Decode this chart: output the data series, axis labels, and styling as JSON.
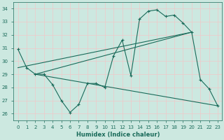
{
  "xlabel": "Humidex (Indice chaleur)",
  "background_color": "#cce8e0",
  "grid_color": "#f0c8c8",
  "line_color": "#1a6b5a",
  "xlim": [
    -0.5,
    23.5
  ],
  "ylim": [
    25.5,
    34.5
  ],
  "yticks": [
    26,
    27,
    28,
    29,
    30,
    31,
    32,
    33,
    34
  ],
  "xticks": [
    0,
    1,
    2,
    3,
    4,
    5,
    6,
    7,
    8,
    9,
    10,
    11,
    12,
    13,
    14,
    15,
    16,
    17,
    18,
    19,
    20,
    21,
    22,
    23
  ],
  "series_main": {
    "x": [
      0,
      1,
      2,
      3,
      4,
      5,
      6,
      7,
      8,
      9,
      10,
      11,
      12,
      13,
      14,
      15,
      16,
      17,
      18,
      19,
      20,
      21,
      22,
      23
    ],
    "y": [
      30.9,
      29.5,
      29.0,
      29.0,
      28.2,
      27.0,
      26.1,
      26.7,
      28.3,
      28.3,
      28.0,
      30.4,
      31.6,
      28.9,
      33.2,
      33.8,
      33.9,
      33.4,
      33.5,
      32.9,
      32.2,
      28.6,
      27.9,
      26.6
    ]
  },
  "line_upper": {
    "x": [
      2,
      20
    ],
    "y": [
      29.0,
      32.2
    ]
  },
  "line_lower": {
    "x": [
      2,
      23
    ],
    "y": [
      29.0,
      26.6
    ]
  },
  "line_long_upper": {
    "x": [
      0,
      20
    ],
    "y": [
      29.5,
      32.2
    ]
  }
}
